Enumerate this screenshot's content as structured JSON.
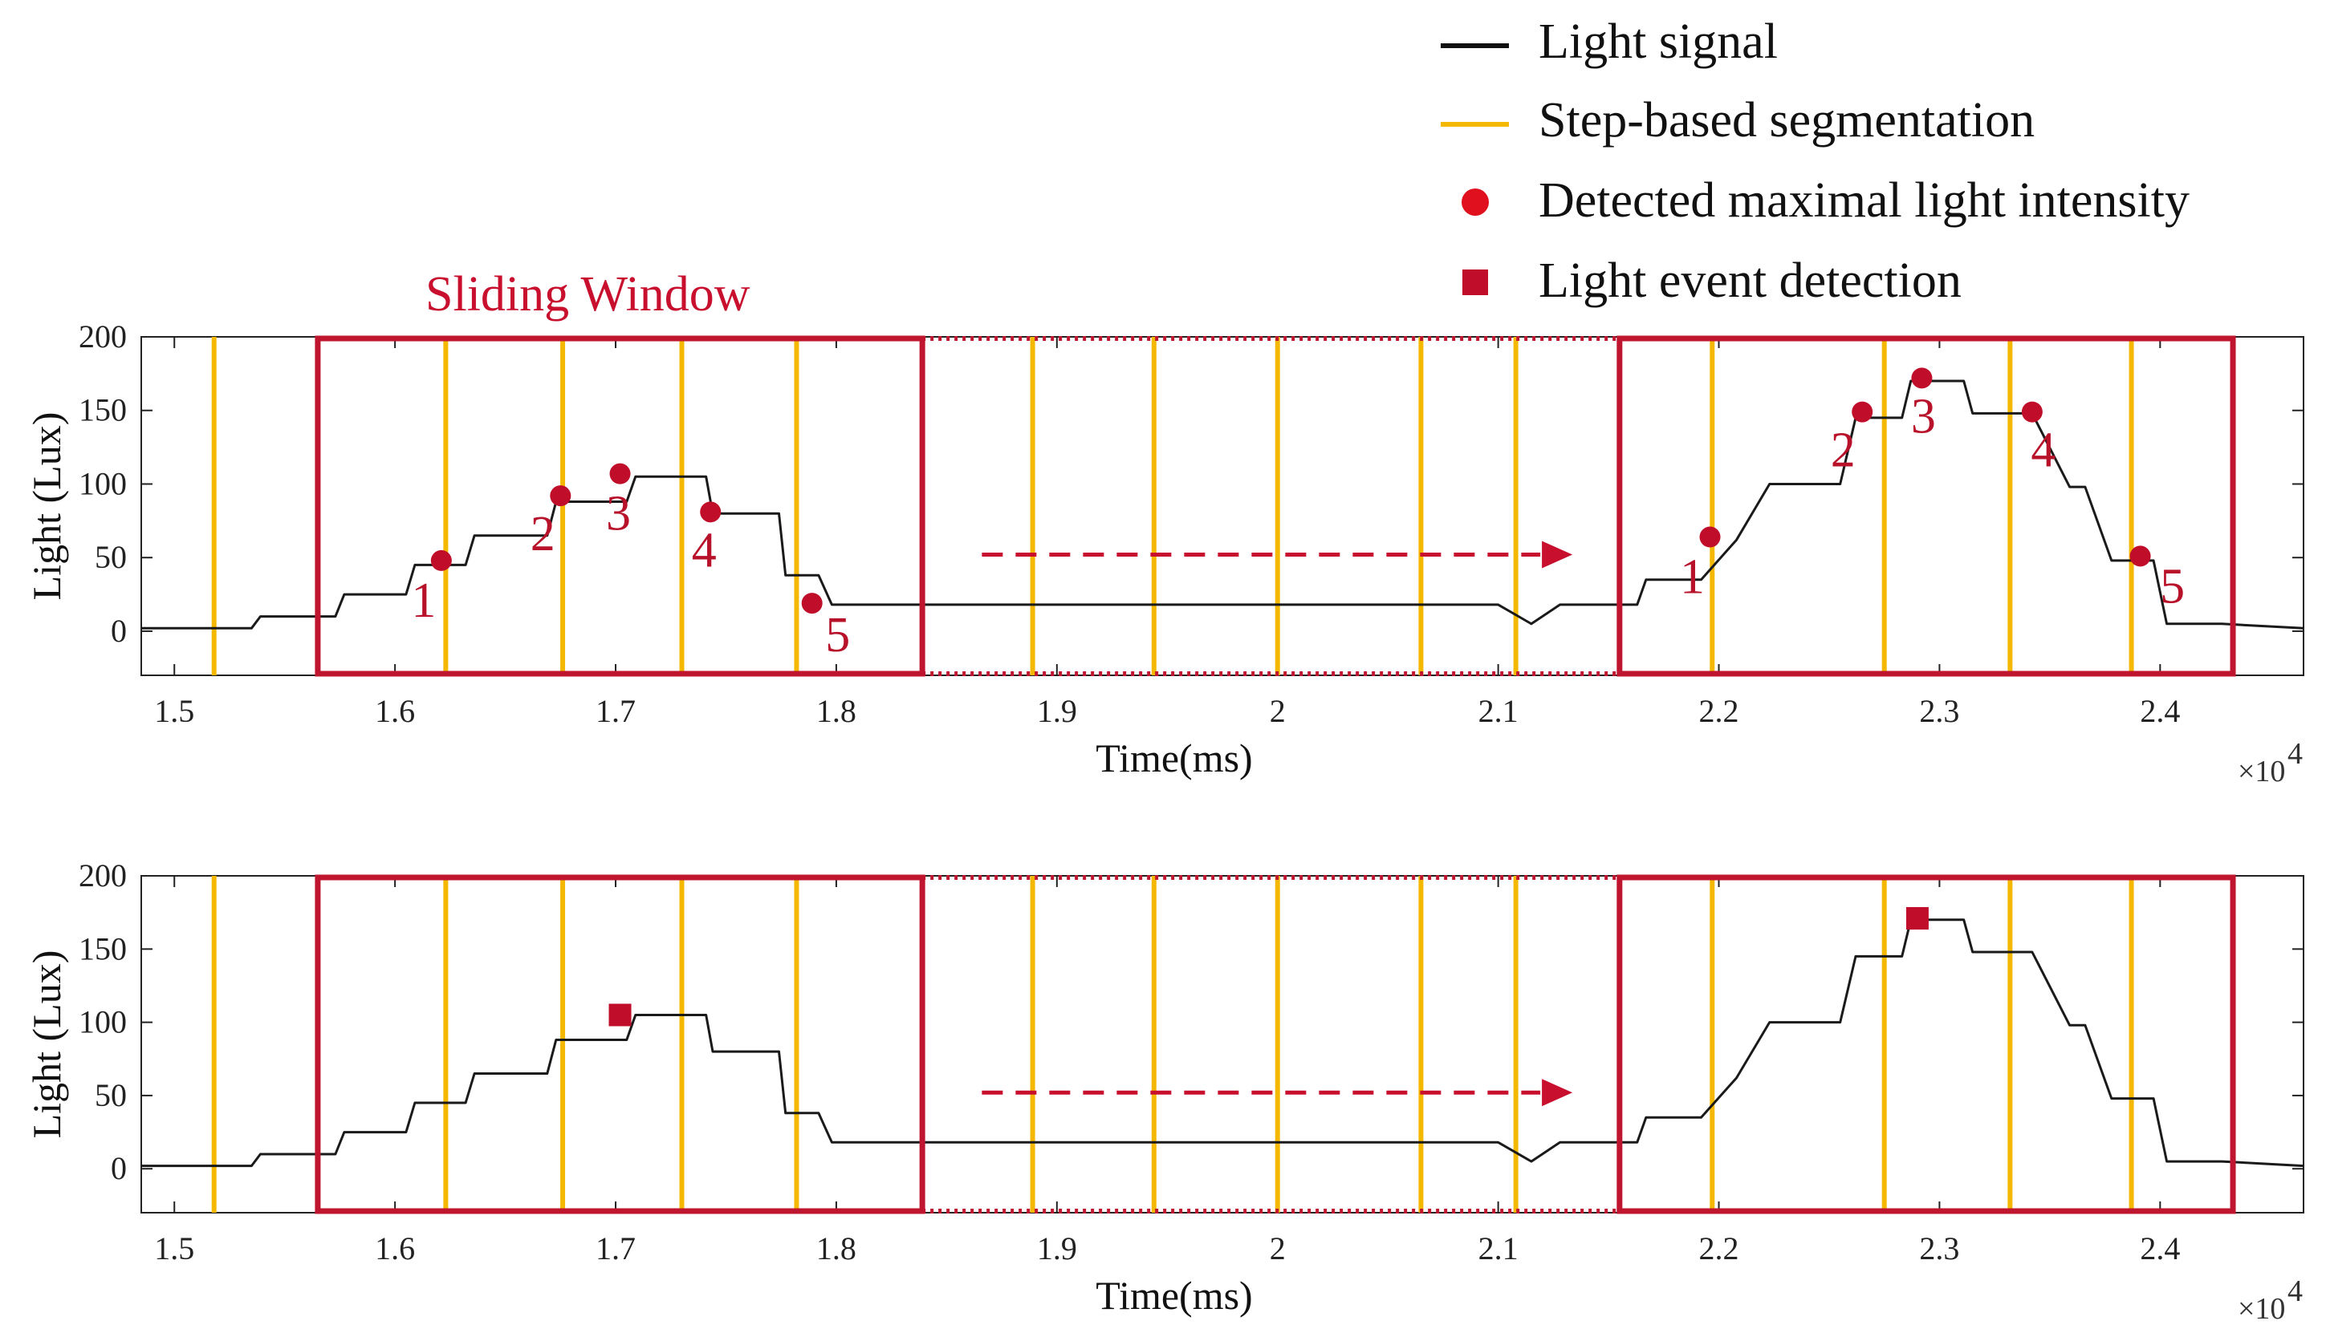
{
  "colors": {
    "signal": "#1a1a1a",
    "segmentation": "#f5b800",
    "window": "#c0152f",
    "marker": "#c00e2a",
    "arrow": "#c8102e"
  },
  "legend": {
    "items": [
      {
        "label": "Light signal",
        "symbol": "line",
        "color": "#111111"
      },
      {
        "label": "Step-based segmentation",
        "symbol": "line",
        "color": "#f5b800"
      },
      {
        "label": "Detected maximal light intensity",
        "symbol": "circle",
        "color": "#e0101e"
      },
      {
        "label": "Light event detection",
        "symbol": "square",
        "color": "#c00e2a"
      }
    ]
  },
  "sliding_window_label": "Sliding Window",
  "chart_data": [
    {
      "type": "line",
      "panel": "top",
      "xlabel": "Time(ms)",
      "ylabel": "Light (Lux)",
      "x_multiplier": "×10",
      "x_multiplier_exp": "4",
      "xlim": [
        1.485,
        2.465
      ],
      "ylim": [
        -30,
        200
      ],
      "xticks": [
        1.5,
        1.6,
        1.7,
        1.8,
        1.9,
        2.0,
        2.1,
        2.2,
        2.3,
        2.4
      ],
      "xtick_labels": [
        "1.5",
        "1.6",
        "1.7",
        "1.8",
        "1.9",
        "2",
        "2.1",
        "2.2",
        "2.3",
        "2.4"
      ],
      "yticks": [
        0,
        50,
        100,
        150,
        200
      ],
      "ytick_labels": [
        "0",
        "50",
        "100",
        "150",
        "200"
      ],
      "signal": {
        "name": "Light signal",
        "x": [
          1.485,
          1.535,
          1.539,
          1.555,
          1.573,
          1.577,
          1.593,
          1.605,
          1.609,
          1.625,
          1.632,
          1.636,
          1.654,
          1.669,
          1.673,
          1.688,
          1.705,
          1.709,
          1.725,
          1.741,
          1.744,
          1.758,
          1.774,
          1.777,
          1.792,
          1.798,
          1.801,
          1.99,
          2.1,
          2.115,
          2.128,
          2.133,
          2.146,
          2.163,
          2.167,
          2.18,
          2.192,
          2.208,
          2.223,
          2.255,
          2.262,
          2.283,
          2.287,
          2.3,
          2.311,
          2.315,
          2.336,
          2.342,
          2.359,
          2.366,
          2.378,
          2.386,
          2.397,
          2.403,
          2.428,
          2.465
        ],
        "y": [
          2,
          2,
          10,
          10,
          10,
          25,
          25,
          25,
          45,
          45,
          45,
          65,
          65,
          65,
          88,
          88,
          88,
          105,
          105,
          105,
          80,
          80,
          80,
          38,
          38,
          18,
          18,
          18,
          18,
          5,
          18,
          18,
          18,
          18,
          35,
          35,
          35,
          62,
          100,
          100,
          145,
          145,
          170,
          170,
          170,
          148,
          148,
          148,
          98,
          98,
          48,
          48,
          48,
          5,
          5,
          2
        ]
      },
      "segmentation_x": [
        1.518,
        1.565,
        1.623,
        1.676,
        1.73,
        1.782,
        1.889,
        1.944,
        2.0,
        2.065,
        2.108,
        2.197,
        2.275,
        2.332,
        2.387
      ],
      "windows": [
        {
          "x0": 1.565,
          "x1": 1.839,
          "style": "solid"
        },
        {
          "x0": 1.839,
          "x1": 2.155,
          "style": "dotted"
        },
        {
          "x0": 2.155,
          "x1": 2.433,
          "style": "solid"
        }
      ],
      "arrow": {
        "x0": 1.866,
        "x1": 2.122,
        "y": 52
      },
      "maxima": [
        {
          "x": 1.621,
          "y": 48,
          "label": "1"
        },
        {
          "x": 1.675,
          "y": 92,
          "label": "2"
        },
        {
          "x": 1.702,
          "y": 107,
          "label": "3"
        },
        {
          "x": 1.743,
          "y": 81,
          "label": "4"
        },
        {
          "x": 1.789,
          "y": 19,
          "label": "5"
        },
        {
          "x": 2.196,
          "y": 64,
          "label": "1"
        },
        {
          "x": 2.265,
          "y": 149,
          "label": "2"
        },
        {
          "x": 2.292,
          "y": 172,
          "label": "3"
        },
        {
          "x": 2.342,
          "y": 149,
          "label": "4"
        },
        {
          "x": 2.391,
          "y": 51,
          "label": "5"
        }
      ]
    },
    {
      "type": "line",
      "panel": "bottom",
      "xlabel": "Time(ms)",
      "ylabel": "Light (Lux)",
      "x_multiplier": "×10",
      "x_multiplier_exp": "4",
      "xlim": [
        1.485,
        2.465
      ],
      "ylim": [
        -30,
        200
      ],
      "xticks": [
        1.5,
        1.6,
        1.7,
        1.8,
        1.9,
        2.0,
        2.1,
        2.2,
        2.3,
        2.4
      ],
      "xtick_labels": [
        "1.5",
        "1.6",
        "1.7",
        "1.8",
        "1.9",
        "2",
        "2.1",
        "2.2",
        "2.3",
        "2.4"
      ],
      "yticks": [
        0,
        50,
        100,
        150,
        200
      ],
      "ytick_labels": [
        "0",
        "50",
        "100",
        "150",
        "200"
      ],
      "signal": {
        "name": "Light signal",
        "x": [
          1.485,
          1.535,
          1.539,
          1.555,
          1.573,
          1.577,
          1.593,
          1.605,
          1.609,
          1.625,
          1.632,
          1.636,
          1.654,
          1.669,
          1.673,
          1.688,
          1.705,
          1.709,
          1.725,
          1.741,
          1.744,
          1.758,
          1.774,
          1.777,
          1.792,
          1.798,
          1.801,
          1.99,
          2.1,
          2.115,
          2.128,
          2.133,
          2.146,
          2.163,
          2.167,
          2.18,
          2.192,
          2.208,
          2.223,
          2.255,
          2.262,
          2.283,
          2.287,
          2.3,
          2.311,
          2.315,
          2.336,
          2.342,
          2.359,
          2.366,
          2.378,
          2.386,
          2.397,
          2.403,
          2.428,
          2.465
        ],
        "y": [
          2,
          2,
          10,
          10,
          10,
          25,
          25,
          25,
          45,
          45,
          45,
          65,
          65,
          65,
          88,
          88,
          88,
          105,
          105,
          105,
          80,
          80,
          80,
          38,
          38,
          18,
          18,
          18,
          18,
          5,
          18,
          18,
          18,
          18,
          35,
          35,
          35,
          62,
          100,
          100,
          145,
          145,
          170,
          170,
          170,
          148,
          148,
          148,
          98,
          98,
          48,
          48,
          48,
          5,
          5,
          2
        ]
      },
      "segmentation_x": [
        1.518,
        1.565,
        1.623,
        1.676,
        1.73,
        1.782,
        1.889,
        1.944,
        2.0,
        2.065,
        2.108,
        2.197,
        2.275,
        2.332,
        2.387
      ],
      "windows": [
        {
          "x0": 1.565,
          "x1": 1.839,
          "style": "solid"
        },
        {
          "x0": 1.839,
          "x1": 2.155,
          "style": "dotted"
        },
        {
          "x0": 2.155,
          "x1": 2.433,
          "style": "solid"
        }
      ],
      "arrow": {
        "x0": 1.866,
        "x1": 2.122,
        "y": 52
      },
      "events": [
        {
          "x": 1.702,
          "y": 105
        },
        {
          "x": 2.29,
          "y": 171
        }
      ]
    }
  ]
}
